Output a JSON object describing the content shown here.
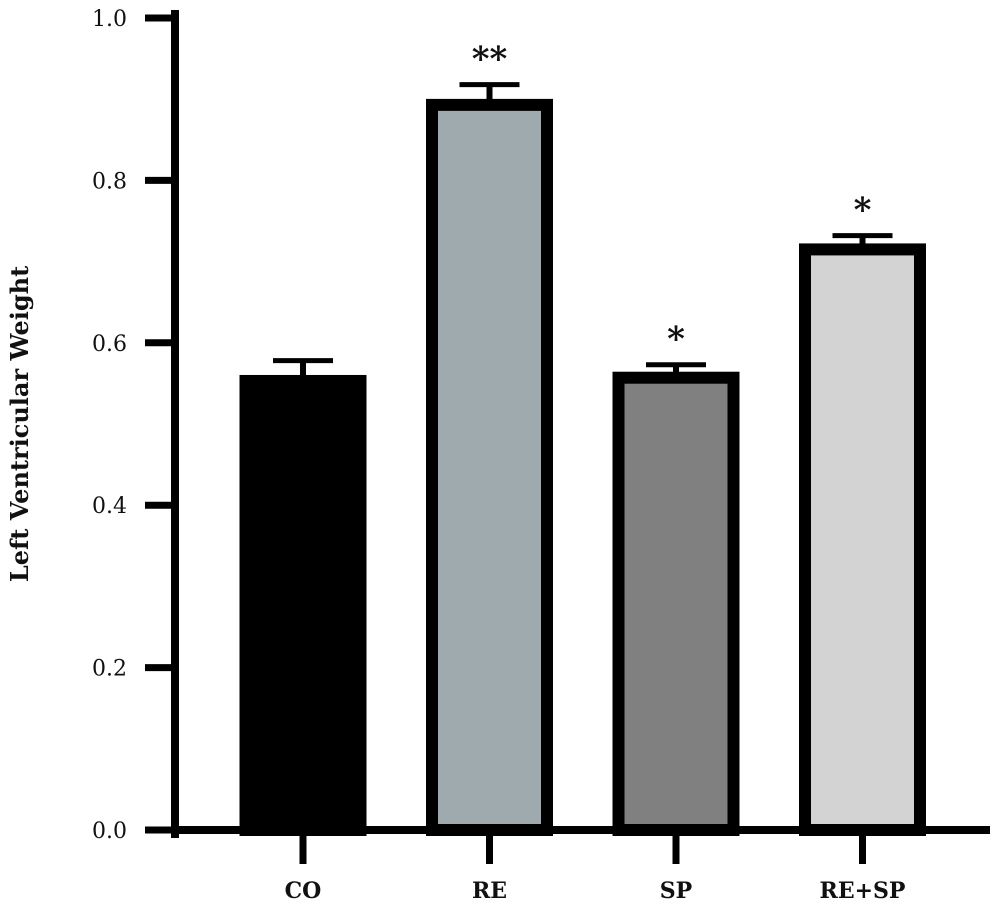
{
  "chart_data": {
    "type": "bar",
    "title": "",
    "xlabel": "",
    "ylabel": "Left Ventricular Weight",
    "ylim": [
      0,
      1.0
    ],
    "yticks": [
      "0.0",
      "0.2",
      "0.4",
      "0.6",
      "0.8",
      "1.0"
    ],
    "grid": false,
    "legend": "none",
    "categories": [
      "CO",
      "RE",
      "SP",
      "RE+SP"
    ],
    "values": [
      0.553,
      0.893,
      0.557,
      0.715
    ],
    "errors": [
      0.025,
      0.025,
      0.016,
      0.017
    ],
    "significance": [
      "",
      "**",
      "*",
      "*"
    ],
    "colors": [
      "#000000",
      "#9eaaae",
      "#808080",
      "#d3d3d3"
    ]
  }
}
